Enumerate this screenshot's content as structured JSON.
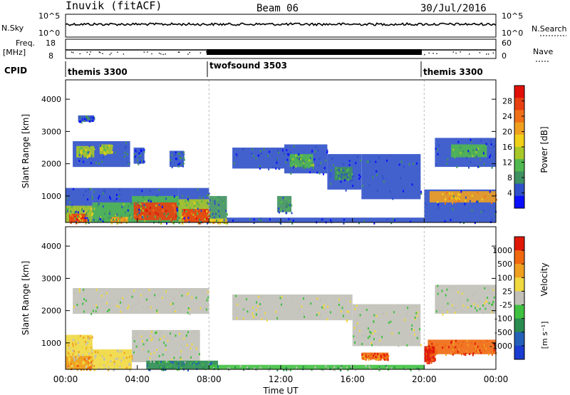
{
  "header": {
    "title": "Inuvik (fitACF)",
    "beam": "Beam 06",
    "date": "30/Jul/2016"
  },
  "nsky_panel": {
    "left_label": "N.Sky",
    "right_label": "N.Search",
    "left_ticks": [
      "10^5",
      "10^0"
    ],
    "right_ticks": [
      "10^5",
      "10^0"
    ]
  },
  "freq_panel": {
    "left_label": "Freq.",
    "left_unit": "[MHz]",
    "left_ticks": [
      "18",
      "8"
    ],
    "right_label": "Nave",
    "right_ticks": [
      "60",
      "0"
    ]
  },
  "cpid": {
    "label": "CPID",
    "segments": [
      {
        "name": "themis 3300",
        "start_h": 0,
        "end_h": 8
      },
      {
        "name": "twofsound 3503",
        "start_h": 8,
        "end_h": 20
      },
      {
        "name": "themis 3300",
        "start_h": 20,
        "end_h": 24
      }
    ]
  },
  "chart_data": [
    {
      "type": "heatmap",
      "name": "power",
      "ylabel": "Slant Range [km]",
      "y_ticks": [
        1000,
        2000,
        3000,
        4000
      ],
      "ylim": [
        180,
        4600
      ],
      "xlim": [
        0,
        24
      ],
      "colorbar": {
        "label": "Power [dB]",
        "ticks": [
          "28",
          "24",
          "20",
          "16",
          "12",
          "8",
          "4"
        ],
        "colors": [
          "#0a10ff",
          "#2f50c8",
          "#3f9060",
          "#50b850",
          "#a8c828",
          "#f0d018",
          "#f0a020",
          "#f07018",
          "#e84010",
          "#e01008"
        ]
      },
      "regions": [
        {
          "t0": 0.0,
          "t1": 1.5,
          "r0": 180,
          "r1": 1250,
          "level": 1
        },
        {
          "t0": 0.0,
          "t1": 1.5,
          "r0": 180,
          "r1": 700,
          "level": 4
        },
        {
          "t0": 0.2,
          "t1": 1.2,
          "r0": 180,
          "r1": 450,
          "level": 8
        },
        {
          "t0": 1.5,
          "t1": 3.7,
          "r0": 180,
          "r1": 1250,
          "level": 1
        },
        {
          "t0": 1.5,
          "t1": 3.7,
          "r0": 180,
          "r1": 800,
          "level": 3
        },
        {
          "t0": 2.5,
          "t1": 3.5,
          "r0": 180,
          "r1": 350,
          "level": 6
        },
        {
          "t0": 3.7,
          "t1": 6.3,
          "r0": 180,
          "r1": 1250,
          "level": 1
        },
        {
          "t0": 3.7,
          "t1": 6.3,
          "r0": 180,
          "r1": 1000,
          "level": 3
        },
        {
          "t0": 3.8,
          "t1": 6.2,
          "r0": 250,
          "r1": 800,
          "level": 8
        },
        {
          "t0": 6.3,
          "t1": 8.0,
          "r0": 180,
          "r1": 1250,
          "level": 1
        },
        {
          "t0": 6.3,
          "t1": 8.0,
          "r0": 180,
          "r1": 900,
          "level": 4
        },
        {
          "t0": 6.5,
          "t1": 8.0,
          "r0": 180,
          "r1": 600,
          "level": 8
        },
        {
          "t0": 8.0,
          "t1": 9.0,
          "r0": 180,
          "r1": 1000,
          "level": 2
        },
        {
          "t0": 8.0,
          "t1": 9.0,
          "r0": 180,
          "r1": 300,
          "level": 5
        },
        {
          "t0": 9.0,
          "t1": 20.0,
          "r0": 180,
          "r1": 330,
          "level": 1
        },
        {
          "t0": 20.0,
          "t1": 24.0,
          "r0": 180,
          "r1": 1200,
          "level": 1
        },
        {
          "t0": 20.3,
          "t1": 24.0,
          "r0": 800,
          "r1": 1150,
          "level": 6
        },
        {
          "t0": 0.4,
          "t1": 3.6,
          "r0": 1900,
          "r1": 2700,
          "level": 1
        },
        {
          "t0": 0.6,
          "t1": 1.6,
          "r0": 2200,
          "r1": 2550,
          "level": 4
        },
        {
          "t0": 1.9,
          "t1": 2.6,
          "r0": 2300,
          "r1": 2600,
          "level": 4
        },
        {
          "t0": 0.7,
          "t1": 1.6,
          "r0": 3300,
          "r1": 3500,
          "level": 1
        },
        {
          "t0": 3.8,
          "t1": 4.4,
          "r0": 2000,
          "r1": 2500,
          "level": 1
        },
        {
          "t0": 5.8,
          "t1": 6.6,
          "r0": 1900,
          "r1": 2400,
          "level": 1
        },
        {
          "t0": 9.3,
          "t1": 12.2,
          "r0": 1850,
          "r1": 2500,
          "level": 1
        },
        {
          "t0": 12.2,
          "t1": 14.6,
          "r0": 1700,
          "r1": 2600,
          "level": 1
        },
        {
          "t0": 12.5,
          "t1": 13.8,
          "r0": 1900,
          "r1": 2300,
          "level": 3
        },
        {
          "t0": 14.6,
          "t1": 16.5,
          "r0": 1200,
          "r1": 2300,
          "level": 1
        },
        {
          "t0": 15.0,
          "t1": 16.0,
          "r0": 1500,
          "r1": 1900,
          "level": 2
        },
        {
          "t0": 16.5,
          "t1": 19.8,
          "r0": 900,
          "r1": 2300,
          "level": 1
        },
        {
          "t0": 11.8,
          "t1": 12.6,
          "r0": 500,
          "r1": 1000,
          "level": 2
        },
        {
          "t0": 20.6,
          "t1": 24.0,
          "r0": 1900,
          "r1": 2800,
          "level": 1
        },
        {
          "t0": 21.5,
          "t1": 23.5,
          "r0": 2200,
          "r1": 2600,
          "level": 3
        }
      ]
    },
    {
      "type": "heatmap",
      "name": "velocity",
      "ylabel": "Slant Range [km]",
      "xlabel": "Time UT",
      "x_ticks": [
        "00:00",
        "04:00",
        "08:00",
        "12:00",
        "16:00",
        "20:00",
        "00:00"
      ],
      "y_ticks": [
        1000,
        2000,
        3000,
        4000
      ],
      "ylim": [
        180,
        4600
      ],
      "xlim": [
        0,
        24
      ],
      "colorbar": {
        "label": "Velocity",
        "unit": "[m s⁻¹]",
        "ticks": [
          "1000",
          "500",
          "100",
          "25",
          "-25",
          "-100",
          "-500",
          "-1000"
        ],
        "colors": [
          "#1a3cd0",
          "#2460b8",
          "#2a8c50",
          "#40c040",
          "#c0c0b8",
          "#f0d840",
          "#f0a020",
          "#f06810",
          "#e01808"
        ]
      },
      "regions": [
        {
          "t0": 0.0,
          "t1": 1.5,
          "r0": 180,
          "r1": 1250,
          "level": 5
        },
        {
          "t0": 0.0,
          "t1": 1.5,
          "r0": 180,
          "r1": 600,
          "level": 6
        },
        {
          "t0": 1.5,
          "t1": 3.7,
          "r0": 180,
          "r1": 800,
          "level": 5
        },
        {
          "t0": 3.7,
          "t1": 7.5,
          "r0": 400,
          "r1": 1400,
          "level": 4
        },
        {
          "t0": 4.5,
          "t1": 8.5,
          "r0": 180,
          "r1": 450,
          "level": 2
        },
        {
          "t0": 8.0,
          "t1": 20.0,
          "r0": 180,
          "r1": 320,
          "level": 3
        },
        {
          "t0": 0.4,
          "t1": 8.0,
          "r0": 1900,
          "r1": 2700,
          "level": 4
        },
        {
          "t0": 9.3,
          "t1": 16.0,
          "r0": 1700,
          "r1": 2500,
          "level": 4
        },
        {
          "t0": 16.0,
          "t1": 19.8,
          "r0": 900,
          "r1": 2200,
          "level": 4
        },
        {
          "t0": 20.2,
          "t1": 24.0,
          "r0": 650,
          "r1": 1100,
          "level": 7
        },
        {
          "t0": 20.0,
          "t1": 20.6,
          "r0": 400,
          "r1": 900,
          "level": 8
        },
        {
          "t0": 20.6,
          "t1": 24.0,
          "r0": 1900,
          "r1": 2800,
          "level": 4
        },
        {
          "t0": 16.5,
          "t1": 18.0,
          "r0": 500,
          "r1": 700,
          "level": 7
        }
      ]
    }
  ]
}
